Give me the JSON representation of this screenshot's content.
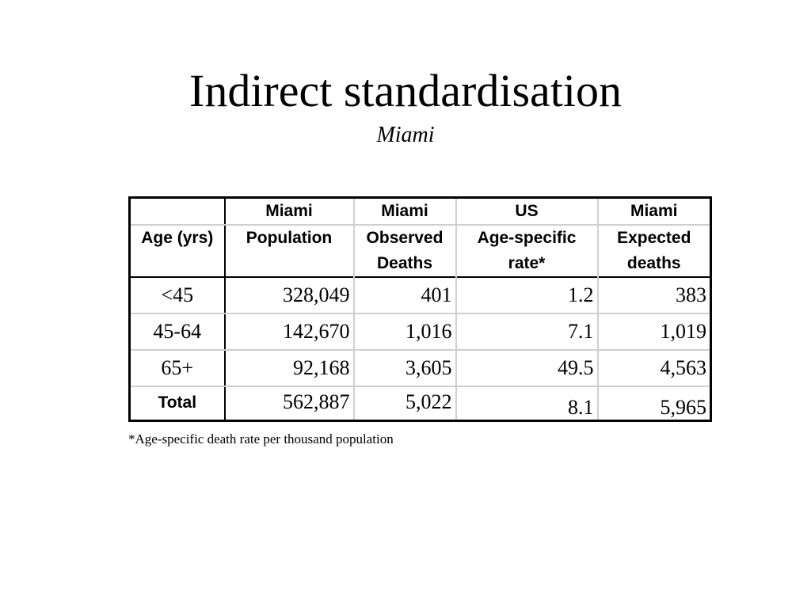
{
  "title": "Indirect standardisation",
  "subtitle": "Miami",
  "table": {
    "header_row1": [
      "",
      "Miami",
      "Miami",
      "US",
      "Miami"
    ],
    "header_row2": [
      "Age (yrs)",
      "Population",
      "Observed Deaths",
      "Age-specific rate*",
      "Expected deaths"
    ],
    "rows": [
      [
        "<45",
        "328,049",
        "401",
        "1.2",
        "383"
      ],
      [
        "45-64",
        "142,670",
        "1,016",
        "7.1",
        "1,019"
      ],
      [
        "65+",
        "92,168",
        "3,605",
        "49.5",
        "4,563"
      ]
    ],
    "total": [
      "Total",
      "562,887",
      "5,022",
      "8.1",
      "5,965"
    ]
  },
  "footnote": "*Age-specific death rate per thousand population"
}
